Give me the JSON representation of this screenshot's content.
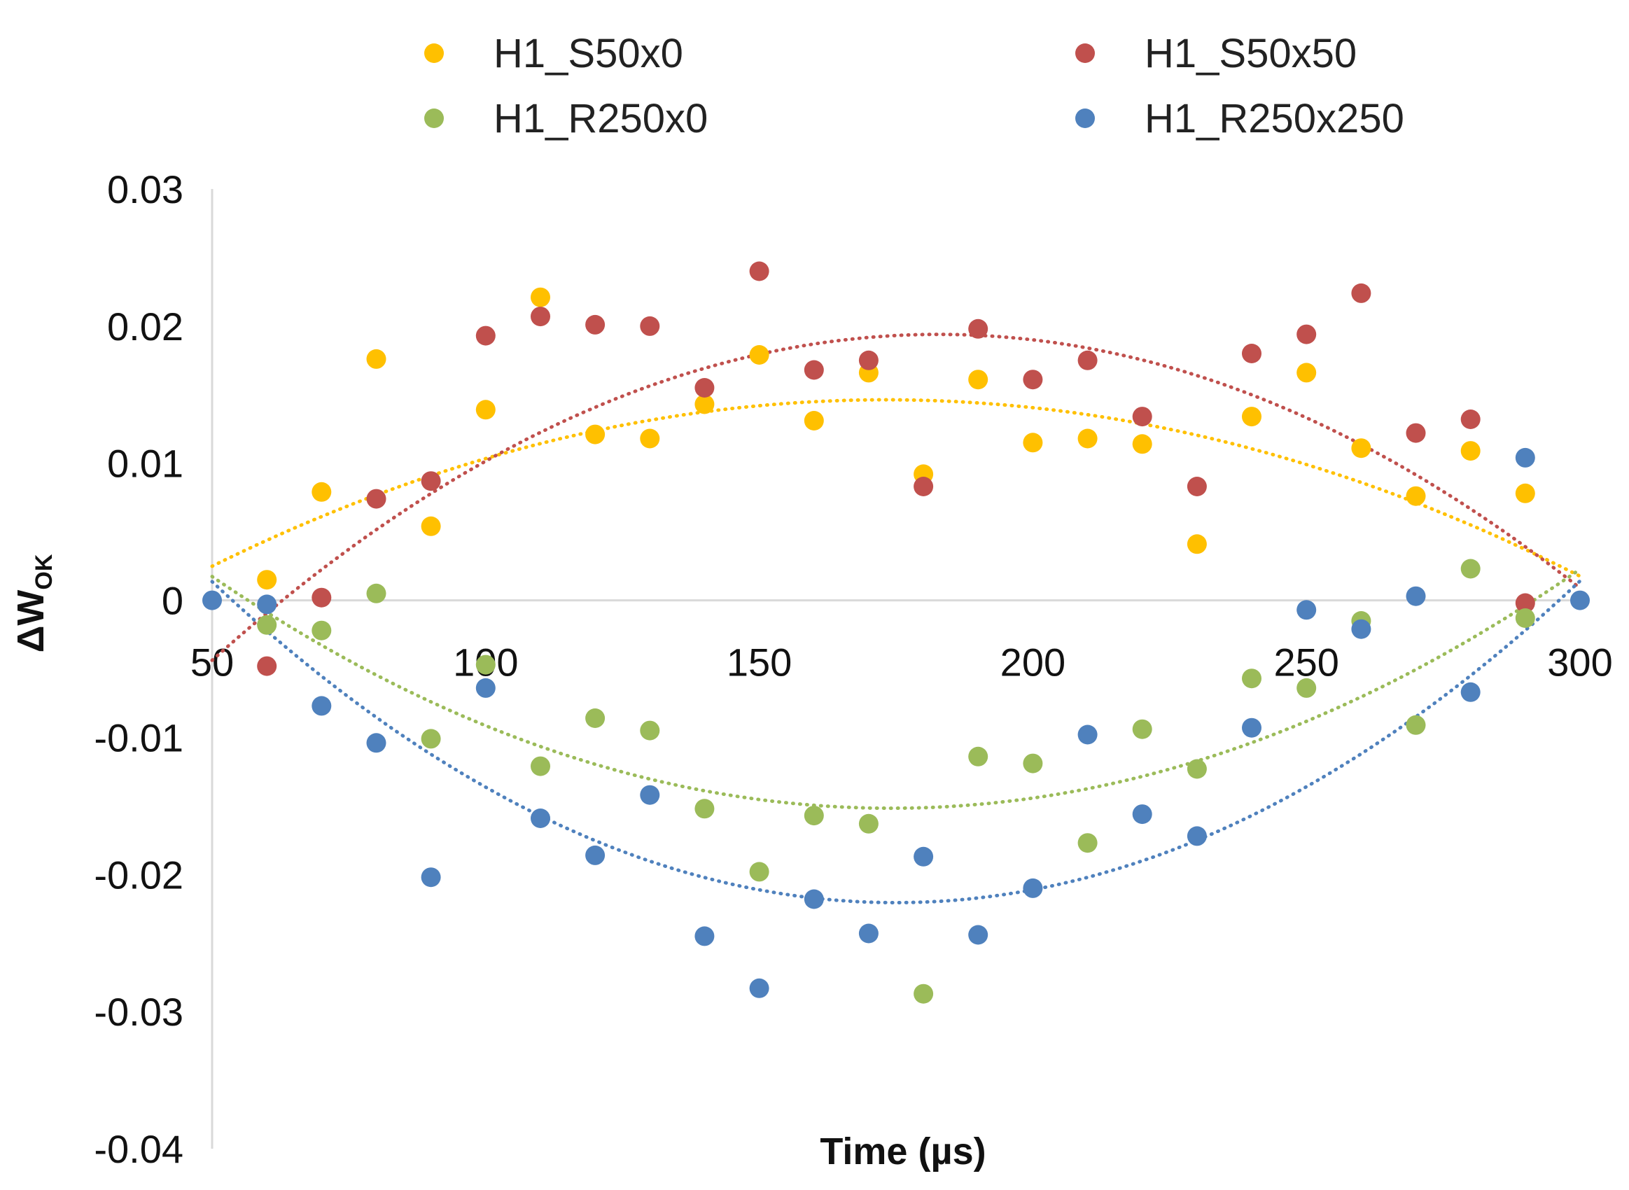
{
  "chart_data": {
    "type": "scatter",
    "title": "",
    "xlabel": "Time (µs)",
    "ylabel": {
      "main": "ΔW",
      "subscript": "OK"
    },
    "xlim": [
      50,
      300
    ],
    "ylim": [
      -0.04,
      0.03
    ],
    "xticks": [
      50,
      100,
      150,
      200,
      250,
      300
    ],
    "xtick_labels": [
      "50",
      "100",
      "150",
      "200",
      "250",
      "300"
    ],
    "yticks": [
      0.03,
      0.02,
      0.01,
      0,
      -0.01,
      -0.02,
      -0.03,
      -0.04
    ],
    "ytick_labels": [
      "0.03",
      "0.02",
      "0.01",
      "0",
      "-0.01",
      "-0.02",
      "-0.03",
      "-0.04"
    ],
    "grid": false,
    "legend_position": "top",
    "trendline": "polynomial (order 2), dotted",
    "series": [
      {
        "name": "H1_S50x0",
        "color": "#FFC000",
        "x": [
          60,
          70,
          80,
          90,
          100,
          110,
          120,
          130,
          140,
          150,
          160,
          170,
          180,
          190,
          200,
          210,
          220,
          230,
          240,
          250,
          260,
          270,
          280,
          290
        ],
        "y": [
          0.0015,
          0.0079,
          0.0176,
          0.0054,
          0.0139,
          0.0221,
          0.0121,
          0.0118,
          0.0143,
          0.0179,
          0.0131,
          0.0166,
          0.0092,
          0.0161,
          0.0115,
          0.0118,
          0.0114,
          0.0041,
          0.0134,
          0.0166,
          0.0111,
          0.0076,
          0.0109,
          0.0078
        ],
        "trend_coeffs": [
          -0.00937,
          0.0002771,
          -8e-07
        ]
      },
      {
        "name": "H1_S50x50",
        "color": "#C0504D",
        "x": [
          60,
          70,
          80,
          90,
          100,
          110,
          120,
          130,
          140,
          150,
          160,
          170,
          180,
          190,
          200,
          210,
          220,
          230,
          240,
          250,
          260,
          270,
          280,
          290
        ],
        "y": [
          -0.0048,
          0.0002,
          0.0074,
          0.0087,
          0.0193,
          0.0207,
          0.0201,
          0.02,
          0.0155,
          0.024,
          0.0168,
          0.0175,
          0.0083,
          0.0198,
          0.0161,
          0.0175,
          0.0134,
          0.0083,
          0.018,
          0.0194,
          0.0224,
          0.0122,
          0.0132,
          -0.0002
        ],
        "trend_coeffs": [
          -0.02565,
          0.0004928,
          -1.3478e-06
        ]
      },
      {
        "name": "H1_R250x0",
        "color": "#9BBB59",
        "x": [
          60,
          70,
          80,
          90,
          100,
          110,
          120,
          130,
          140,
          150,
          160,
          170,
          180,
          190,
          200,
          210,
          220,
          230,
          240,
          250,
          260,
          270,
          280,
          290
        ],
        "y": [
          -0.0018,
          -0.0022,
          0.0005,
          -0.0101,
          -0.0047,
          -0.0121,
          -0.0086,
          -0.0095,
          -0.0152,
          -0.0198,
          -0.0157,
          -0.0163,
          -0.0287,
          -0.0114,
          -0.0119,
          -0.0177,
          -0.0094,
          -0.0123,
          -0.0057,
          -0.0064,
          -0.0015,
          -0.0091,
          0.0023,
          -0.0013
        ],
        "trend_coeffs": [
          0.01811,
          -0.0003824,
          1.0986e-06
        ]
      },
      {
        "name": "H1_R250x250",
        "color": "#4F81BD",
        "x": [
          50,
          60,
          70,
          80,
          90,
          100,
          110,
          120,
          130,
          140,
          150,
          160,
          170,
          180,
          190,
          200,
          210,
          220,
          230,
          240,
          250,
          260,
          270,
          280,
          290,
          300
        ],
        "y": [
          0.0,
          -0.0003,
          -0.0077,
          -0.0104,
          -0.0202,
          -0.0064,
          -0.0159,
          -0.0186,
          -0.0142,
          -0.0245,
          -0.0283,
          -0.0218,
          -0.0243,
          -0.0187,
          -0.0244,
          -0.021,
          -0.0098,
          -0.0156,
          -0.0172,
          -0.0093,
          -0.0007,
          -0.0021,
          0.0003,
          -0.0067,
          0.0104,
          0.0
        ],
        "trend_coeffs": [
          0.02385,
          -0.0005248,
          1.5e-06
        ]
      }
    ]
  }
}
